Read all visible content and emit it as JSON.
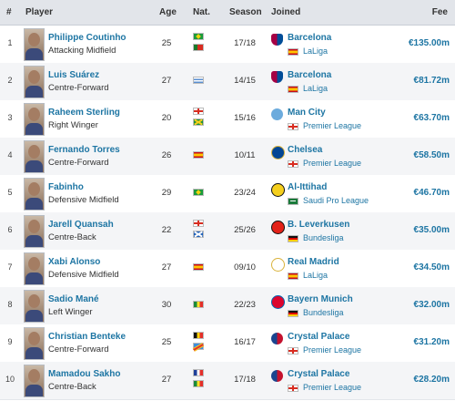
{
  "headers": {
    "num": "#",
    "player": "Player",
    "age": "Age",
    "nat": "Nat.",
    "season": "Season",
    "joined": "Joined",
    "fee": "Fee"
  },
  "colors": {
    "link": "#1d75a3",
    "header_bg": "#e2e5ea",
    "row_alt_bg": "#f4f5f7"
  },
  "rows": [
    {
      "num": "1",
      "name": "Philippe Coutinho",
      "position": "Attacking Midfield",
      "age": "25",
      "nationalities": [
        "brazil-flag",
        "portugal-flag"
      ],
      "season": "17/18",
      "club": "Barcelona",
      "club_logo": "barcelona-crest-icon",
      "league_flag": "spain-flag",
      "league": "LaLiga",
      "fee": "€135.00m"
    },
    {
      "num": "2",
      "name": "Luis Suárez",
      "position": "Centre-Forward",
      "age": "27",
      "nationalities": [
        "uruguay-flag"
      ],
      "season": "14/15",
      "club": "Barcelona",
      "club_logo": "barcelona-crest-icon",
      "league_flag": "spain-flag",
      "league": "LaLiga",
      "fee": "€81.72m"
    },
    {
      "num": "3",
      "name": "Raheem Sterling",
      "position": "Right Winger",
      "age": "20",
      "nationalities": [
        "england-flag",
        "jamaica-flag"
      ],
      "season": "15/16",
      "club": "Man City",
      "club_logo": "man-city-crest-icon",
      "league_flag": "england-flag",
      "league": "Premier League",
      "fee": "€63.70m"
    },
    {
      "num": "4",
      "name": "Fernando Torres",
      "position": "Centre-Forward",
      "age": "26",
      "nationalities": [
        "spain-flag"
      ],
      "season": "10/11",
      "club": "Chelsea",
      "club_logo": "chelsea-crest-icon",
      "league_flag": "england-flag",
      "league": "Premier League",
      "fee": "€58.50m"
    },
    {
      "num": "5",
      "name": "Fabinho",
      "position": "Defensive Midfield",
      "age": "29",
      "nationalities": [
        "brazil-flag"
      ],
      "season": "23/24",
      "club": "Al-Ittihad",
      "club_logo": "al-ittihad-crest-icon",
      "league_flag": "saudi-arabia-flag",
      "league": "Saudi Pro League",
      "fee": "€46.70m"
    },
    {
      "num": "6",
      "name": "Jarell Quansah",
      "position": "Centre-Back",
      "age": "22",
      "nationalities": [
        "england-flag",
        "scotland-flag"
      ],
      "season": "25/26",
      "club": "B. Leverkusen",
      "club_logo": "leverkusen-crest-icon",
      "league_flag": "germany-flag",
      "league": "Bundesliga",
      "fee": "€35.00m"
    },
    {
      "num": "7",
      "name": "Xabi Alonso",
      "position": "Defensive Midfield",
      "age": "27",
      "nationalities": [
        "spain-flag"
      ],
      "season": "09/10",
      "club": "Real Madrid",
      "club_logo": "real-madrid-crest-icon",
      "league_flag": "spain-flag",
      "league": "LaLiga",
      "fee": "€34.50m"
    },
    {
      "num": "8",
      "name": "Sadio Mané",
      "position": "Left Winger",
      "age": "30",
      "nationalities": [
        "senegal-flag"
      ],
      "season": "22/23",
      "club": "Bayern Munich",
      "club_logo": "bayern-crest-icon",
      "league_flag": "germany-flag",
      "league": "Bundesliga",
      "fee": "€32.00m"
    },
    {
      "num": "9",
      "name": "Christian Benteke",
      "position": "Centre-Forward",
      "age": "25",
      "nationalities": [
        "belgium-flag",
        "dr-congo-flag"
      ],
      "season": "16/17",
      "club": "Crystal Palace",
      "club_logo": "crystal-palace-crest-icon",
      "league_flag": "england-flag",
      "league": "Premier League",
      "fee": "€31.20m"
    },
    {
      "num": "10",
      "name": "Mamadou Sakho",
      "position": "Centre-Back",
      "age": "27",
      "nationalities": [
        "france-flag",
        "senegal-flag"
      ],
      "season": "17/18",
      "club": "Crystal Palace",
      "club_logo": "crystal-palace-crest-icon",
      "league_flag": "england-flag",
      "league": "Premier League",
      "fee": "€28.20m"
    }
  ]
}
